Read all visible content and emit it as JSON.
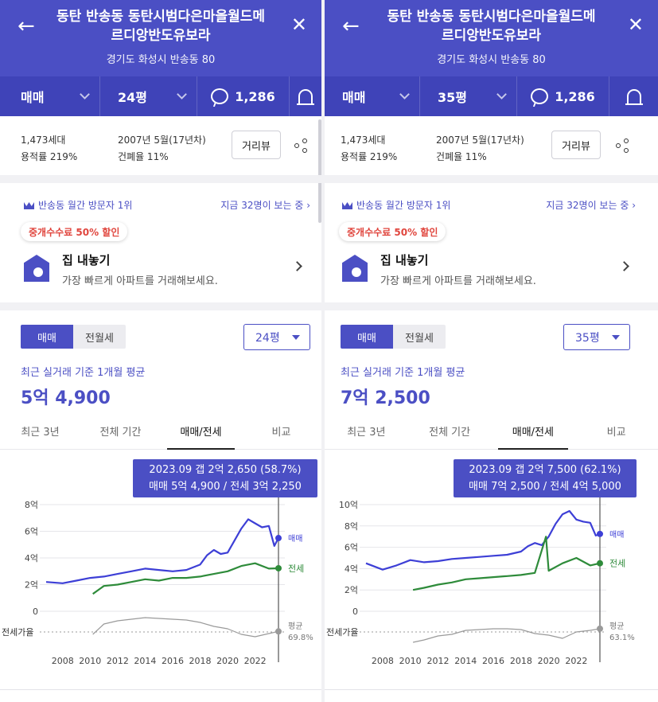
{
  "panels": [
    {
      "id": "left",
      "header": {
        "title_line1": "동탄 반송동 동탄시범다은마을월드메",
        "title_line2": "르디앙반도유보라",
        "address": "경기도 화성시 반송동 80"
      },
      "tabbar": {
        "trade_type": "매매",
        "pyeong": "24평",
        "comment_count": "1,286"
      },
      "info": {
        "households": "1,473세대",
        "floor_area_ratio": "용적률 219%",
        "built": "2007년 5월(17년차)",
        "coverage_ratio": "건폐율 11%",
        "street_view_label": "거리뷰"
      },
      "visit": {
        "rank_text": "반송동 월간 방문자 1위",
        "viewers_text": "지금 32명이 보는 중"
      },
      "listing": {
        "discount_badge": "중개수수료 50% 할인",
        "title": "집 내놓기",
        "subtitle": "가장 빠르게 아파트를 거래해보세요."
      },
      "price": {
        "seg_on": "매매",
        "seg_off": "전월세",
        "pyeong_select": "24평",
        "avg_label": "최근 실거래 기준 1개월 평균",
        "avg_value": "5억 4,900"
      },
      "period_tabs": [
        "최근 3년",
        "전체 기간",
        "매매/전세",
        "비교"
      ],
      "selected_tab": 2,
      "tooltip": {
        "line1": "2023.09  갭 2억 2,650 (58.7%)",
        "line2": "매매 5억 4,900 / 전세 3억 2,250"
      },
      "chart_data": {
        "type": "line",
        "x_ticks": [
          "2008",
          "2010",
          "2012",
          "2014",
          "2016",
          "2018",
          "2020",
          "2022"
        ],
        "y_ticks": [
          "8억",
          "6억",
          "4억",
          "2억",
          "0"
        ],
        "ylim": [
          0,
          8
        ],
        "series": [
          {
            "name": "매매",
            "color": "#3d3fd6",
            "x": [
              2006.8,
              2008,
              2009,
              2010,
              2011,
              2012,
              2013,
              2014,
              2015,
              2016,
              2017,
              2018,
              2018.5,
              2019,
              2019.5,
              2020,
              2020.5,
              2021,
              2021.5,
              2022,
              2022.5,
              2023,
              2023.4,
              2023.7
            ],
            "y": [
              2.2,
              2.1,
              2.3,
              2.5,
              2.6,
              2.8,
              3.0,
              3.2,
              3.1,
              3.0,
              3.1,
              3.5,
              4.2,
              4.6,
              4.3,
              4.4,
              5.3,
              6.2,
              6.9,
              6.6,
              6.3,
              6.4,
              4.9,
              5.49
            ]
          },
          {
            "name": "전세",
            "color": "#2e8b3a",
            "x": [
              2010.2,
              2011,
              2012,
              2013,
              2014,
              2015,
              2016,
              2017,
              2018,
              2019,
              2020,
              2021,
              2022,
              2023,
              2023.7
            ],
            "y": [
              1.3,
              1.9,
              2.0,
              2.2,
              2.4,
              2.3,
              2.5,
              2.5,
              2.6,
              2.8,
              3.0,
              3.4,
              3.6,
              3.2,
              3.225
            ]
          },
          {
            "name": "전세가율",
            "color": "#9a9a9a",
            "x": [
              2010.2,
              2011,
              2012,
              2013,
              2014,
              2015,
              2016,
              2017,
              2018,
              2019,
              2020,
              2021,
              2022,
              2023,
              2023.7
            ],
            "y": [
              55,
              68,
              72,
              74,
              76,
              75,
              74,
              73,
              70,
              65,
              62,
              55,
              52,
              56,
              58.7
            ]
          }
        ],
        "x_range": [
          2006.8,
          2023.7
        ],
        "ratio_label": "전세가율",
        "end_labels": {
          "sale": "매매",
          "lease": "전세",
          "ratio_top": "평균",
          "ratio_bottom": "69.8%"
        }
      }
    },
    {
      "id": "right",
      "header": {
        "title_line1": "동탄 반송동 동탄시범다은마을월드메",
        "title_line2": "르디앙반도유보라",
        "address": "경기도 화성시 반송동 80"
      },
      "tabbar": {
        "trade_type": "매매",
        "pyeong": "35평",
        "comment_count": "1,286"
      },
      "info": {
        "households": "1,473세대",
        "floor_area_ratio": "용적률 219%",
        "built": "2007년 5월(17년차)",
        "coverage_ratio": "건폐율 11%",
        "street_view_label": "거리뷰"
      },
      "visit": {
        "rank_text": "반송동 월간 방문자 1위",
        "viewers_text": "지금 32명이 보는 중"
      },
      "listing": {
        "discount_badge": "중개수수료 50% 할인",
        "title": "집 내놓기",
        "subtitle": "가장 빠르게 아파트를 거래해보세요."
      },
      "price": {
        "seg_on": "매매",
        "seg_off": "전월세",
        "pyeong_select": "35평",
        "avg_label": "최근 실거래 기준 1개월 평균",
        "avg_value": "7억 2,500"
      },
      "period_tabs": [
        "최근 3년",
        "전체 기간",
        "매매/전세",
        "비교"
      ],
      "selected_tab": 2,
      "tooltip": {
        "line1": "2023.09  갭 2억 7,500 (62.1%)",
        "line2": "매매 7억 2,500 / 전세 4억 5,000"
      },
      "chart_data": {
        "type": "line",
        "x_ticks": [
          "2008",
          "2010",
          "2012",
          "2014",
          "2016",
          "2018",
          "2020",
          "2022"
        ],
        "y_ticks": [
          "10억",
          "8억",
          "6억",
          "4억",
          "2억",
          "0"
        ],
        "ylim": [
          0,
          10
        ],
        "series": [
          {
            "name": "매매",
            "color": "#3d3fd6",
            "x": [
              2006.8,
              2008,
              2009,
              2010,
              2011,
              2012,
              2013,
              2014,
              2015,
              2016,
              2017,
              2018,
              2018.5,
              2019,
              2019.5,
              2020,
              2020.5,
              2021,
              2021.5,
              2022,
              2022.5,
              2023,
              2023.4,
              2023.7
            ],
            "y": [
              4.5,
              3.9,
              4.3,
              4.8,
              4.6,
              4.7,
              4.9,
              5.0,
              5.1,
              5.2,
              5.3,
              5.6,
              6.1,
              6.4,
              6.2,
              7.0,
              8.2,
              9.1,
              9.4,
              8.6,
              8.4,
              8.3,
              7.1,
              7.25
            ]
          },
          {
            "name": "전세",
            "color": "#2e8b3a",
            "x": [
              2010.2,
              2011,
              2012,
              2013,
              2014,
              2015,
              2016,
              2017,
              2018,
              2019,
              2019.8,
              2020,
              2021,
              2022,
              2023,
              2023.7
            ],
            "y": [
              2.0,
              2.2,
              2.5,
              2.7,
              3.0,
              3.1,
              3.2,
              3.3,
              3.4,
              3.6,
              7.0,
              3.8,
              4.5,
              5.0,
              4.3,
              4.5
            ]
          },
          {
            "name": "전세가율",
            "color": "#9a9a9a",
            "x": [
              2010.2,
              2011,
              2012,
              2013,
              2014,
              2015,
              2016,
              2017,
              2018,
              2019,
              2020,
              2021,
              2022,
              2023,
              2023.7
            ],
            "y": [
              45,
              48,
              53,
              55,
              60,
              61,
              62,
              62,
              61,
              56,
              54,
              50,
              58,
              60,
              62.1
            ]
          }
        ],
        "x_range": [
          2006.8,
          2023.7
        ],
        "ratio_label": "전세가율",
        "end_labels": {
          "sale": "매매",
          "lease": "전세",
          "ratio_top": "평균",
          "ratio_bottom": "63.1%"
        }
      }
    }
  ]
}
